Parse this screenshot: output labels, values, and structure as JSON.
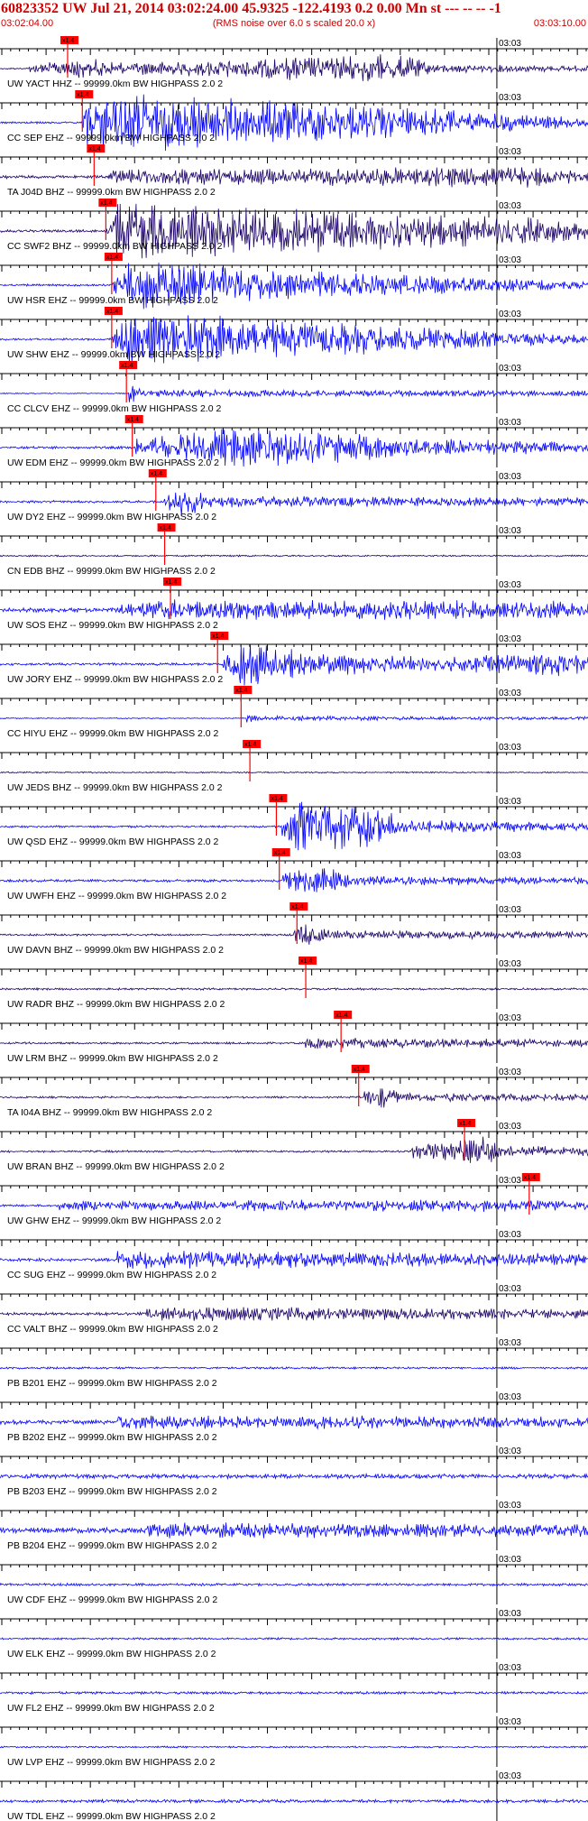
{
  "header": {
    "title": "60823352 UW Jul 21, 2014 03:02:24.00   45.9325 -122.4193  0.2 0.00 Mn st --- -- --  -1",
    "start_time": "03:02:04.00",
    "rms_note": "(RMS noise over 6.0 s scaled 20.0 x)",
    "end_time": "03:03:10.00"
  },
  "colors": {
    "header_text": "#cc0000",
    "trace_blue": "#0000ff",
    "trace_navy": "#1a0066",
    "pick_marker": "#ff0000",
    "axis": "#000000"
  },
  "chart_data": {
    "type": "line",
    "x_start": "03:02:04.00",
    "x_end": "03:03:10.00",
    "minute_mark": "03:03",
    "pick_label": "x1.4",
    "traces": [
      {
        "label": "UW YACT HHZ -- 99999.0km BW  HIGHPASS  2.0  2",
        "color": "#1a0066",
        "pick": 0.115,
        "env": [
          [
            0.05,
            0.3
          ],
          [
            0.12,
            1.2
          ],
          [
            0.22,
            0.6
          ],
          [
            0.68,
            1.6
          ],
          [
            0.74,
            0.4
          ]
        ],
        "noise": 0.08
      },
      {
        "label": "CC SEP EHZ -- 99999.0km BW  HIGHPASS  2.0  2",
        "color": "#0000ff",
        "pick": 0.14,
        "env": [
          [
            0.14,
            0.2
          ],
          [
            0.15,
            3.2
          ],
          [
            0.5,
            2.4
          ],
          [
            0.95,
            0.6
          ]
        ],
        "noise": 0.12
      },
      {
        "label": "TA J04D BHZ -- 99999.0km BW  HIGHPASS  2.0  2",
        "color": "#1a0066",
        "pick": 0.16,
        "env": [
          [
            0.18,
            0.6
          ],
          [
            0.9,
            1.0
          ],
          [
            0.97,
            0.6
          ]
        ],
        "noise": 0.18
      },
      {
        "label": "CC SWF2 BHZ -- 99999.0km BW  HIGHPASS  2.0  2",
        "color": "#1a0066",
        "pick": 0.18,
        "env": [
          [
            0.18,
            0.6
          ],
          [
            0.2,
            3.2
          ],
          [
            0.55,
            2.2
          ],
          [
            0.95,
            1.2
          ]
        ],
        "noise": 0.15
      },
      {
        "label": "UW HSR EHZ -- 99999.0km BW  HIGHPASS  2.0  2",
        "color": "#0000ff",
        "pick": 0.19,
        "env": [
          [
            0.19,
            0.4
          ],
          [
            0.22,
            2.6
          ],
          [
            0.55,
            1.4
          ],
          [
            0.95,
            0.4
          ]
        ],
        "noise": 0.12
      },
      {
        "label": "UW SHW EHZ -- 99999.0km BW  HIGHPASS  2.0  2",
        "color": "#0000ff",
        "pick": 0.19,
        "env": [
          [
            0.19,
            0.5
          ],
          [
            0.22,
            3.0
          ],
          [
            0.6,
            1.6
          ],
          [
            0.95,
            0.5
          ]
        ],
        "noise": 0.12
      },
      {
        "label": "CC CLCV EHZ -- 99999.0km BW  HIGHPASS  2.0  2",
        "color": "#0000ff",
        "pick": 0.215,
        "env": [
          [
            0.22,
            1.4
          ],
          [
            0.24,
            0.4
          ]
        ],
        "noise": 0.06
      },
      {
        "label": "UW EDM EHZ -- 99999.0km BW  HIGHPASS  2.0  2",
        "color": "#0000ff",
        "pick": 0.225,
        "env": [
          [
            0.23,
            0.8
          ],
          [
            0.42,
            2.2
          ],
          [
            0.7,
            0.9
          ],
          [
            0.95,
            0.5
          ]
        ],
        "noise": 0.15
      },
      {
        "label": "UW DY2 EHZ -- 99999.0km BW  HIGHPASS  2.0  2",
        "color": "#0000ff",
        "pick": 0.265,
        "env": [
          [
            0.28,
            0.6
          ],
          [
            0.31,
            1.6
          ],
          [
            0.36,
            0.5
          ]
        ],
        "noise": 0.15
      },
      {
        "label": "CN EDB BHZ -- 99999.0km BW  HIGHPASS  2.0  2",
        "color": "#1a0066",
        "pick": 0.28,
        "env": [],
        "noise": 0.1
      },
      {
        "label": "UW SOS EHZ -- 99999.0km BW  HIGHPASS  2.0  2",
        "color": "#0000ff",
        "pick": 0.29,
        "env": [
          [
            0.2,
            0.5
          ],
          [
            0.3,
            0.9
          ],
          [
            0.6,
            0.8
          ],
          [
            0.95,
            0.8
          ]
        ],
        "noise": 0.25
      },
      {
        "label": "UW JORY EHZ -- 99999.0km BW  HIGHPASS  2.0  2",
        "color": "#0000ff",
        "pick": 0.37,
        "env": [
          [
            0.38,
            0.6
          ],
          [
            0.4,
            2.8
          ],
          [
            0.52,
            1.2
          ],
          [
            0.75,
            0.6
          ],
          [
            0.95,
            1.2
          ]
        ],
        "noise": 0.15
      },
      {
        "label": "CC HIYU EHZ -- 99999.0km BW  HIGHPASS  2.0  2",
        "color": "#0000ff",
        "pick": 0.41,
        "env": [
          [
            0.42,
            0.8
          ],
          [
            0.44,
            0.2
          ]
        ],
        "noise": 0.06
      },
      {
        "label": "UW JEDS BHZ -- 99999.0km BW  HIGHPASS  2.0  2",
        "color": "#1a0066",
        "pick": 0.425,
        "env": [],
        "noise": 0.08
      },
      {
        "label": "UW QSD EHZ -- 99999.0km BW  HIGHPASS  2.0  2",
        "color": "#0000ff",
        "pick": 0.47,
        "env": [
          [
            0.48,
            1.0
          ],
          [
            0.5,
            3.0
          ],
          [
            0.65,
            2.2
          ],
          [
            0.68,
            0.6
          ]
        ],
        "noise": 0.12
      },
      {
        "label": "UW UWFH EHZ -- 99999.0km BW  HIGHPASS  2.0  2",
        "color": "#0000ff",
        "pick": 0.475,
        "env": [
          [
            0.48,
            0.6
          ],
          [
            0.55,
            1.8
          ],
          [
            0.6,
            0.4
          ]
        ],
        "noise": 0.15
      },
      {
        "label": "UW DAVN BHZ -- 99999.0km BW  HIGHPASS  2.0  2",
        "color": "#1a0066",
        "pick": 0.505,
        "env": [
          [
            0.5,
            0.8
          ],
          [
            0.52,
            1.2
          ],
          [
            0.57,
            0.4
          ]
        ],
        "noise": 0.12
      },
      {
        "label": "UW RADR BHZ -- 99999.0km BW  HIGHPASS  2.0  2",
        "color": "#1a0066",
        "pick": 0.52,
        "env": [],
        "noise": 0.12
      },
      {
        "label": "UW LRM BHZ -- 99999.0km BW  HIGHPASS  2.0  2",
        "color": "#1a0066",
        "pick": 0.58,
        "env": [
          [
            0.52,
            0.5
          ]
        ],
        "noise": 0.12
      },
      {
        "label": "TA I04A BHZ -- 99999.0km BW  HIGHPASS  2.0  2",
        "color": "#1a0066",
        "pick": 0.61,
        "env": [
          [
            0.62,
            0.8
          ],
          [
            0.65,
            1.2
          ],
          [
            0.68,
            0.4
          ]
        ],
        "noise": 0.12
      },
      {
        "label": "UW BRAN BHZ -- 99999.0km BW  HIGHPASS  2.0  2",
        "color": "#1a0066",
        "pick": 0.79,
        "env": [
          [
            0.7,
            0.6
          ],
          [
            0.82,
            1.8
          ],
          [
            0.85,
            0.6
          ]
        ],
        "noise": 0.12
      },
      {
        "label": "UW GHW EHZ -- 99999.0km BW  HIGHPASS  2.0  2",
        "color": "#0000ff",
        "pick": 0.9,
        "env": [
          [
            0.1,
            0.4
          ],
          [
            0.9,
            0.6
          ]
        ],
        "noise": 0.12
      },
      {
        "label": "CC SUG EHZ -- 99999.0km BW  HIGHPASS  2.0  2",
        "color": "#0000ff",
        "pick": null,
        "env": [
          [
            0.2,
            0.8
          ],
          [
            0.35,
            0.8
          ]
        ],
        "noise": 0.2
      },
      {
        "label": "CC VALT BHZ -- 99999.0km BW  HIGHPASS  2.0  2",
        "color": "#1a0066",
        "pick": null,
        "env": [
          [
            0.25,
            0.6
          ],
          [
            0.45,
            0.6
          ]
        ],
        "noise": 0.18
      },
      {
        "label": "PB B201 EHZ -- 99999.0km BW  HIGHPASS  2.0  2",
        "color": "#0000ff",
        "pick": null,
        "env": [],
        "noise": 0.12
      },
      {
        "label": "PB B202 EHZ -- 99999.0km BW  HIGHPASS  2.0  2",
        "color": "#0000ff",
        "pick": null,
        "env": [
          [
            0.2,
            0.6
          ]
        ],
        "noise": 0.25
      },
      {
        "label": "PB B203 EHZ -- 99999.0km BW  HIGHPASS  2.0  2",
        "color": "#0000ff",
        "pick": null,
        "env": [],
        "noise": 0.25
      },
      {
        "label": "PB B204 EHZ -- 99999.0km BW  HIGHPASS  2.0  2",
        "color": "#0000ff",
        "pick": null,
        "env": [
          [
            0.25,
            0.6
          ]
        ],
        "noise": 0.3
      },
      {
        "label": "UW CDF EHZ -- 99999.0km BW  HIGHPASS  2.0  2",
        "color": "#0000ff",
        "pick": null,
        "env": [],
        "noise": 0.15
      },
      {
        "label": "UW ELK EHZ -- 99999.0km BW  HIGHPASS  2.0  2",
        "color": "#0000ff",
        "pick": null,
        "env": [],
        "noise": 0.12
      },
      {
        "label": "UW FL2 EHZ -- 99999.0km BW  HIGHPASS  2.0  2",
        "color": "#0000ff",
        "pick": null,
        "env": [],
        "noise": 0.15
      },
      {
        "label": "UW LVP EHZ -- 99999.0km BW  HIGHPASS  2.0  2",
        "color": "#0000ff",
        "pick": null,
        "env": [],
        "noise": 0.1
      },
      {
        "label": "UW TDL EHZ -- 99999.0km BW  HIGHPASS  2.0  2",
        "color": "#0000ff",
        "pick": null,
        "env": [],
        "noise": 0.18
      }
    ]
  }
}
